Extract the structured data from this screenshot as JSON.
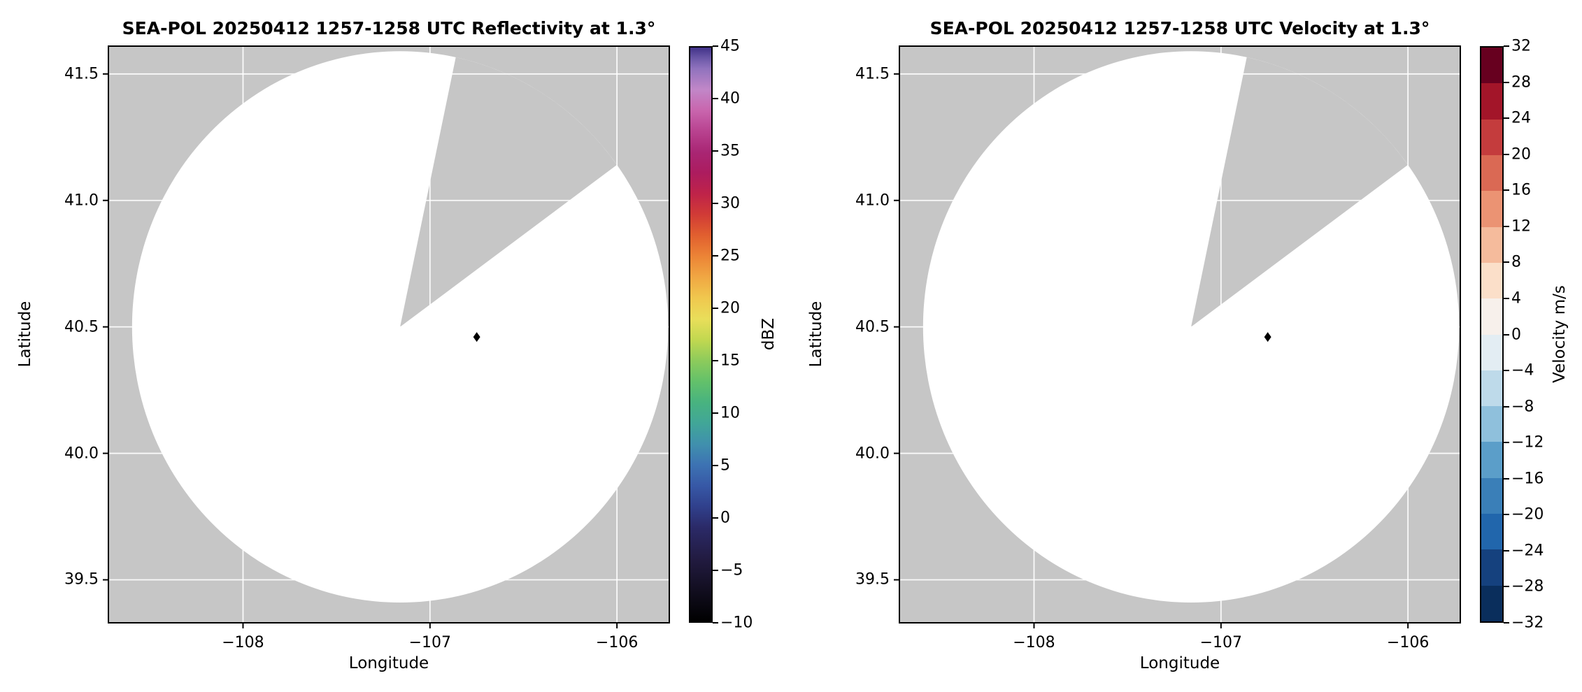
{
  "figure": {
    "background": "#ffffff",
    "no_data_color": "#c6c6c6",
    "coverage_color": "#ffffff",
    "grid_color": "#ffffff",
    "spine_color": "#000000",
    "marker_color": "#000000"
  },
  "chart_data": [
    {
      "type": "radar_ppi",
      "title": "SEA-POL 20250412 1257-1258 UTC Reflectivity at 1.3°",
      "xlabel": "Longitude",
      "ylabel": "Latitude",
      "xlim": [
        -108.72,
        -105.72
      ],
      "ylim": [
        39.33,
        41.61
      ],
      "x_ticks": [
        {
          "value": -108,
          "label": "−108"
        },
        {
          "value": -107,
          "label": "−107"
        },
        {
          "value": -106,
          "label": "−106"
        }
      ],
      "y_ticks": [
        {
          "value": 41.5,
          "label": "41.5"
        },
        {
          "value": 41.0,
          "label": "41.0"
        },
        {
          "value": 40.5,
          "label": "40.5"
        },
        {
          "value": 40.0,
          "label": "40.0"
        },
        {
          "value": 39.5,
          "label": "39.5"
        }
      ],
      "radar": {
        "lon": -107.16,
        "lat": 40.5
      },
      "coverage": {
        "radius_lat_deg": 1.09,
        "missing_sector_azimuth_deg": [
          12,
          54
        ]
      },
      "site_marker": {
        "lon": -106.75,
        "lat": 40.46
      },
      "note": "No reflectivity echoes shown; scan coverage disk is blank with a missing-data sector to the north-northeast",
      "colorbar": {
        "label": "dBZ",
        "min": -10,
        "max": 45,
        "style": "continuous",
        "ticks": [
          {
            "value": 45,
            "label": "45"
          },
          {
            "value": 40,
            "label": "40"
          },
          {
            "value": 35,
            "label": "35"
          },
          {
            "value": 30,
            "label": "30"
          },
          {
            "value": 25,
            "label": "25"
          },
          {
            "value": 20,
            "label": "20"
          },
          {
            "value": 15,
            "label": "15"
          },
          {
            "value": 10,
            "label": "10"
          },
          {
            "value": 5,
            "label": "5"
          },
          {
            "value": 0,
            "label": "0"
          },
          {
            "value": -5,
            "label": "−5"
          },
          {
            "value": -10,
            "label": "−10"
          }
        ],
        "gradient_stops": [
          {
            "pos": 0.0,
            "color": "#000000"
          },
          {
            "pos": 0.055,
            "color": "#120e20"
          },
          {
            "pos": 0.109,
            "color": "#221b41"
          },
          {
            "pos": 0.164,
            "color": "#2b2a68"
          },
          {
            "pos": 0.2,
            "color": "#30408c"
          },
          {
            "pos": 0.236,
            "color": "#3758a6"
          },
          {
            "pos": 0.273,
            "color": "#3d73b3"
          },
          {
            "pos": 0.309,
            "color": "#4090ad"
          },
          {
            "pos": 0.345,
            "color": "#41a698"
          },
          {
            "pos": 0.382,
            "color": "#48b37f"
          },
          {
            "pos": 0.418,
            "color": "#63c16a"
          },
          {
            "pos": 0.455,
            "color": "#8ecb5b"
          },
          {
            "pos": 0.491,
            "color": "#c2d850"
          },
          {
            "pos": 0.527,
            "color": "#e9de5a"
          },
          {
            "pos": 0.564,
            "color": "#f0c74e"
          },
          {
            "pos": 0.6,
            "color": "#f0a743"
          },
          {
            "pos": 0.636,
            "color": "#ec8436"
          },
          {
            "pos": 0.673,
            "color": "#e15f2f"
          },
          {
            "pos": 0.709,
            "color": "#d13b36"
          },
          {
            "pos": 0.745,
            "color": "#bf2349"
          },
          {
            "pos": 0.782,
            "color": "#ac1c5f"
          },
          {
            "pos": 0.818,
            "color": "#a92674"
          },
          {
            "pos": 0.855,
            "color": "#b94390"
          },
          {
            "pos": 0.891,
            "color": "#c966ae"
          },
          {
            "pos": 0.927,
            "color": "#c187c8"
          },
          {
            "pos": 0.964,
            "color": "#8f72bd"
          },
          {
            "pos": 0.982,
            "color": "#6a57a7"
          },
          {
            "pos": 1.0,
            "color": "#413289"
          }
        ]
      }
    },
    {
      "type": "radar_ppi",
      "title": "SEA-POL 20250412 1257-1258 UTC Velocity at 1.3°",
      "xlabel": "Longitude",
      "ylabel": "Latitude",
      "xlim": [
        -108.72,
        -105.72
      ],
      "ylim": [
        39.33,
        41.61
      ],
      "x_ticks": [
        {
          "value": -108,
          "label": "−108"
        },
        {
          "value": -107,
          "label": "−107"
        },
        {
          "value": -106,
          "label": "−106"
        }
      ],
      "y_ticks": [
        {
          "value": 41.5,
          "label": "41.5"
        },
        {
          "value": 41.0,
          "label": "41.0"
        },
        {
          "value": 40.5,
          "label": "40.5"
        },
        {
          "value": 40.0,
          "label": "40.0"
        },
        {
          "value": 39.5,
          "label": "39.5"
        }
      ],
      "radar": {
        "lon": -107.16,
        "lat": 40.5
      },
      "coverage": {
        "radius_lat_deg": 1.09,
        "missing_sector_azimuth_deg": [
          12,
          54
        ]
      },
      "site_marker": {
        "lon": -106.75,
        "lat": 40.46
      },
      "note": "No velocity echoes shown; scan coverage disk is blank with a missing-data sector to the north-northeast",
      "colorbar": {
        "label": "Velocity m/s",
        "min": -32,
        "max": 32,
        "style": "discrete",
        "ticks": [
          {
            "value": 32,
            "label": "32"
          },
          {
            "value": 28,
            "label": "28"
          },
          {
            "value": 24,
            "label": "24"
          },
          {
            "value": 20,
            "label": "20"
          },
          {
            "value": 16,
            "label": "16"
          },
          {
            "value": 12,
            "label": "12"
          },
          {
            "value": 8,
            "label": "8"
          },
          {
            "value": 4,
            "label": "4"
          },
          {
            "value": 0,
            "label": "0"
          },
          {
            "value": -4,
            "label": "−4"
          },
          {
            "value": -8,
            "label": "−8"
          },
          {
            "value": -12,
            "label": "−12"
          },
          {
            "value": -16,
            "label": "−16"
          },
          {
            "value": -20,
            "label": "−20"
          },
          {
            "value": -24,
            "label": "−24"
          },
          {
            "value": -28,
            "label": "−28"
          },
          {
            "value": -32,
            "label": "−32"
          }
        ],
        "segment_colors_bottom_to_top": [
          "#0a2e5c",
          "#15417e",
          "#2166ac",
          "#3a7fb8",
          "#5b9ec9",
          "#8fc0dc",
          "#bedaea",
          "#e3edf3",
          "#f7f0eb",
          "#fbdfc9",
          "#f5bb9c",
          "#eb9373",
          "#da6954",
          "#c43c3d",
          "#a31529",
          "#67001f"
        ]
      }
    }
  ]
}
